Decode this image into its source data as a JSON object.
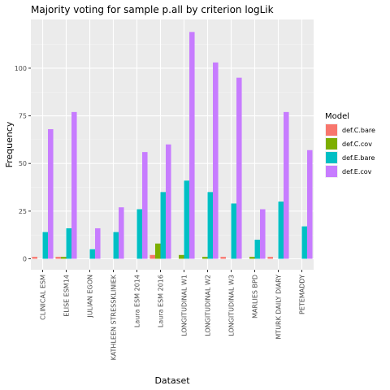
{
  "chart_data": {
    "type": "bar",
    "title": "Majority voting for sample p.all by criterion logLik",
    "xlabel": "Dataset",
    "ylabel": "Frequency",
    "ylim": [
      0,
      124
    ],
    "yticks": [
      0,
      25,
      50,
      75,
      100
    ],
    "grid": true,
    "legend_title": "Model",
    "legend_position": "right",
    "categories": [
      "CLINICAL ESM",
      "ELISE ESM14",
      "JULIAN EGON",
      "KATHLEEN STRESSKLINIEK",
      "Laura ESM 2014",
      "Laura ESM 2016",
      "LONGITUDINAL W1",
      "LONGITUDINAL W2",
      "LONGITUDINAL W3",
      "MARLIES BPD",
      "MTURK DAILY DIARY",
      "PETEMADDY"
    ],
    "series": [
      {
        "name": "def.C.bare",
        "color": "#F8766D",
        "values": [
          1,
          1,
          null,
          null,
          null,
          2,
          null,
          null,
          1,
          null,
          1,
          null
        ]
      },
      {
        "name": "def.C.cov",
        "color": "#7CAE00",
        "values": [
          null,
          1,
          null,
          null,
          null,
          8,
          2,
          1,
          null,
          1,
          null,
          null
        ]
      },
      {
        "name": "def.E.bare",
        "color": "#00BFC4",
        "values": [
          14,
          16,
          5,
          14,
          26,
          35,
          41,
          35,
          29,
          10,
          30,
          17
        ]
      },
      {
        "name": "def.E.cov",
        "color": "#C77CFF",
        "values": [
          68,
          77,
          16,
          27,
          56,
          60,
          119,
          103,
          95,
          26,
          77,
          57
        ]
      }
    ]
  }
}
